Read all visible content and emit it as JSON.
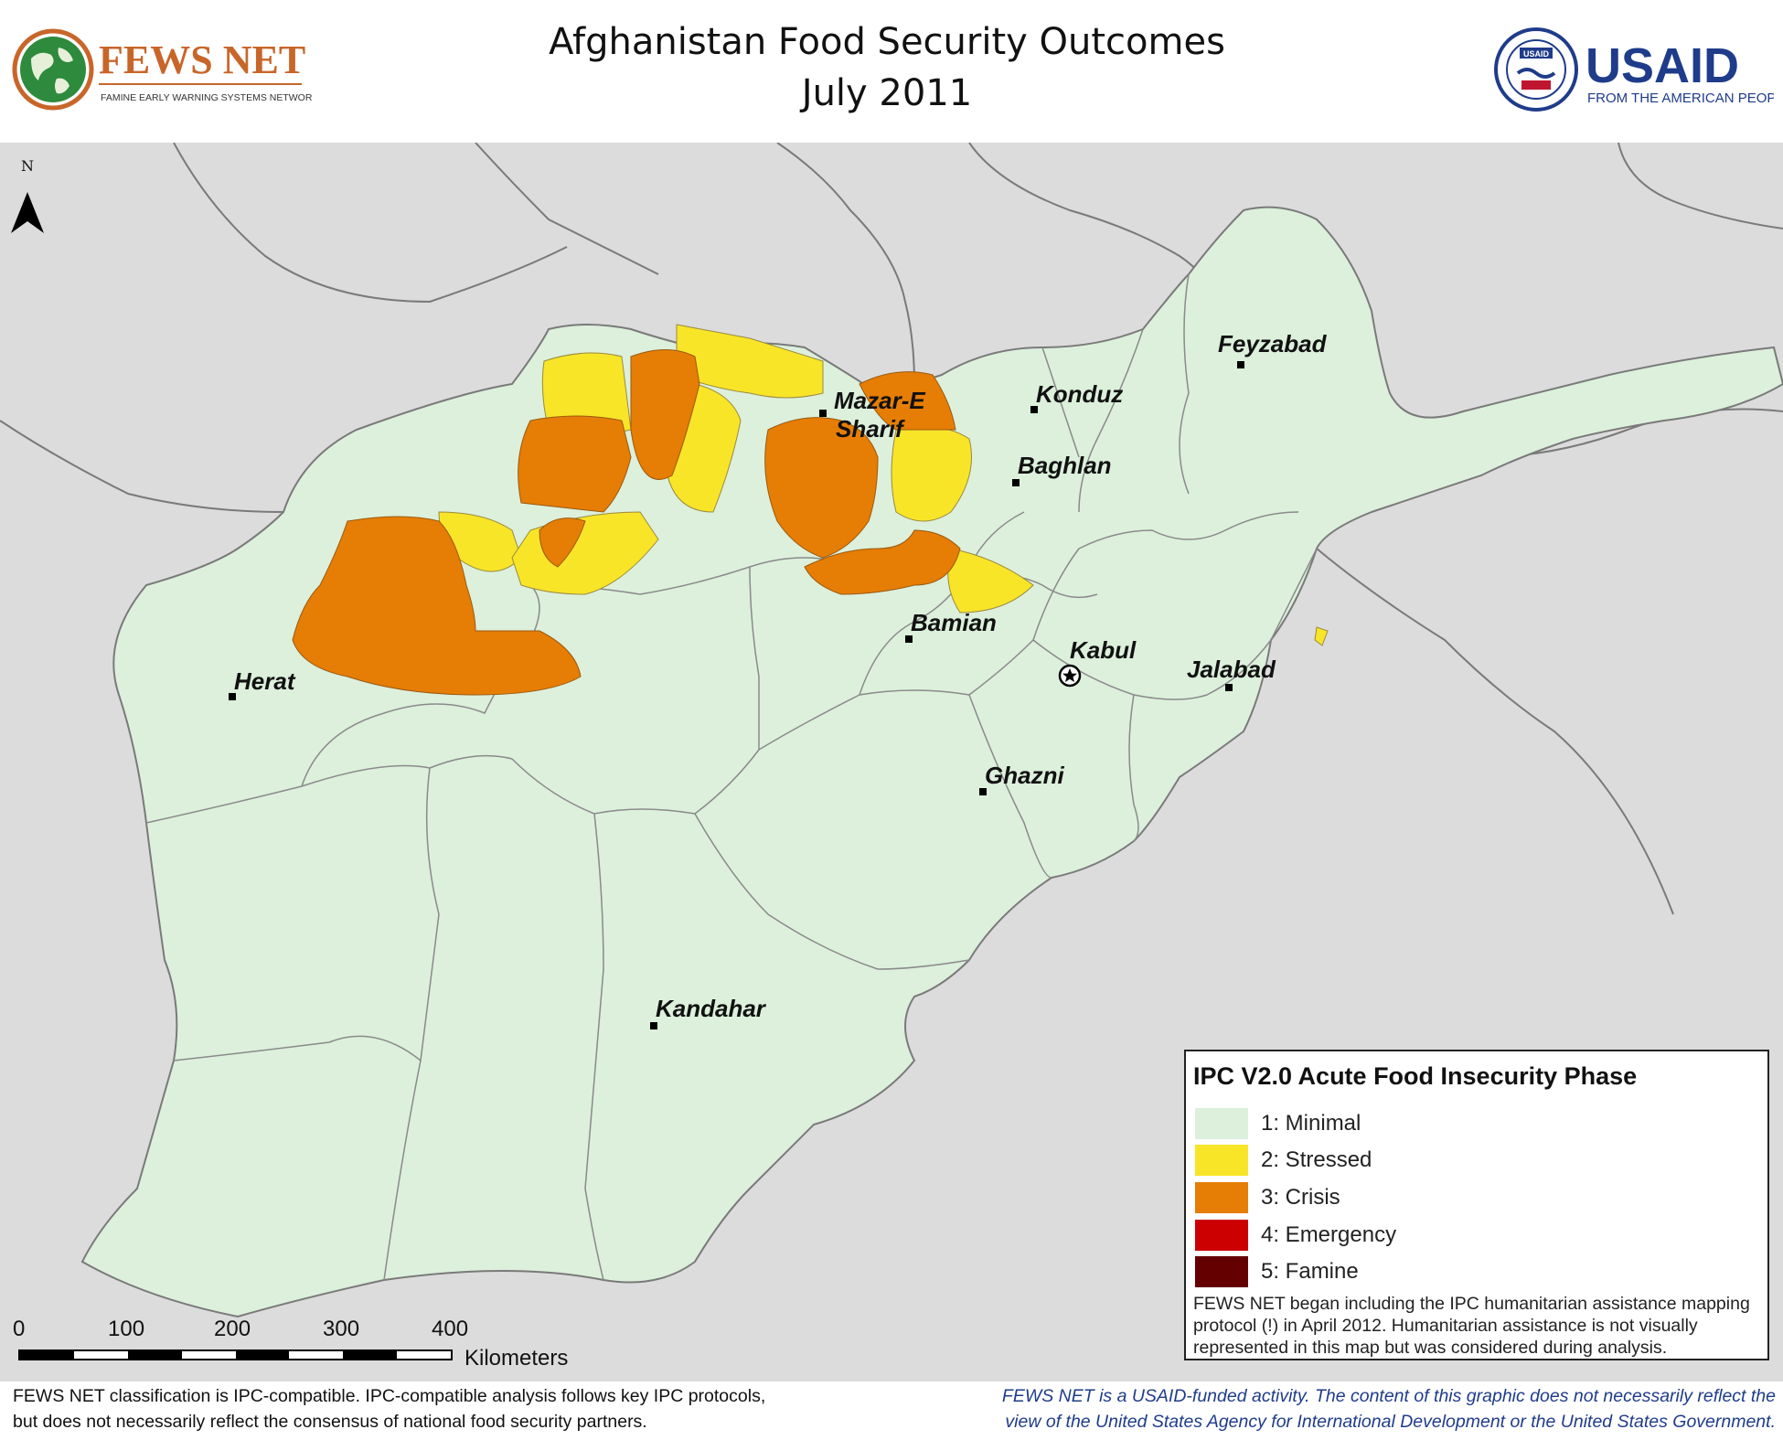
{
  "header": {
    "title_line1": "Afghanistan Food Security Outcomes",
    "title_line2": "July 2011",
    "fews_logo_text": "FEWS NET",
    "fews_logo_subtext": "FAMINE EARLY WARNING SYSTEMS NETWORK",
    "usaid_logo_text": "USAID",
    "usaid_logo_subtext": "FROM THE AMERICAN PEOPLE",
    "usaid_seal_text": "USAID"
  },
  "map": {
    "north_label": "N",
    "colors": {
      "background": "#dcdcdc",
      "minimal": "#dcf0dc",
      "stressed": "#f8e528",
      "crisis": "#e67d05",
      "emergency": "#cc0000",
      "famine": "#640000",
      "border": "#7a7a7a"
    },
    "cities": [
      {
        "name": "Feyzabad"
      },
      {
        "name_line1": "Mazar-E",
        "name_line2": "Sharif"
      },
      {
        "name": "Konduz"
      },
      {
        "name": "Baghlan"
      },
      {
        "name": "Bamian"
      },
      {
        "name": "Kabul",
        "capital": true
      },
      {
        "name": "Jalabad"
      },
      {
        "name": "Herat"
      },
      {
        "name": "Ghazni"
      },
      {
        "name": "Kandahar"
      }
    ]
  },
  "legend": {
    "title": "IPC V2.0 Acute Food Insecurity Phase",
    "items": [
      {
        "label": "1: Minimal",
        "color": "#dcf0dc"
      },
      {
        "label": "2: Stressed",
        "color": "#f8e528"
      },
      {
        "label": "3: Crisis",
        "color": "#e67d05"
      },
      {
        "label": "4: Emergency",
        "color": "#cc0000"
      },
      {
        "label": "5: Famine",
        "color": "#640000"
      }
    ],
    "note": "FEWS NET began including the IPC humanitarian assistance mapping protocol (!) in April 2012. Humanitarian assistance is not visually represented in this map but was considered during analysis."
  },
  "scale": {
    "ticks": [
      "0",
      "100",
      "200",
      "300",
      "400"
    ],
    "unit": "Kilometers"
  },
  "footer": {
    "left_line1": "FEWS NET classification is IPC-compatible. IPC-compatible analysis follows key IPC protocols,",
    "left_line2": "but does not necessarily reflect the consensus of national food security partners.",
    "right_line1": "FEWS NET is a USAID-funded activity. The content of this graphic does not necessarily reflect the",
    "right_line2": "view of the United States Agency for International Development or the United States Government."
  }
}
